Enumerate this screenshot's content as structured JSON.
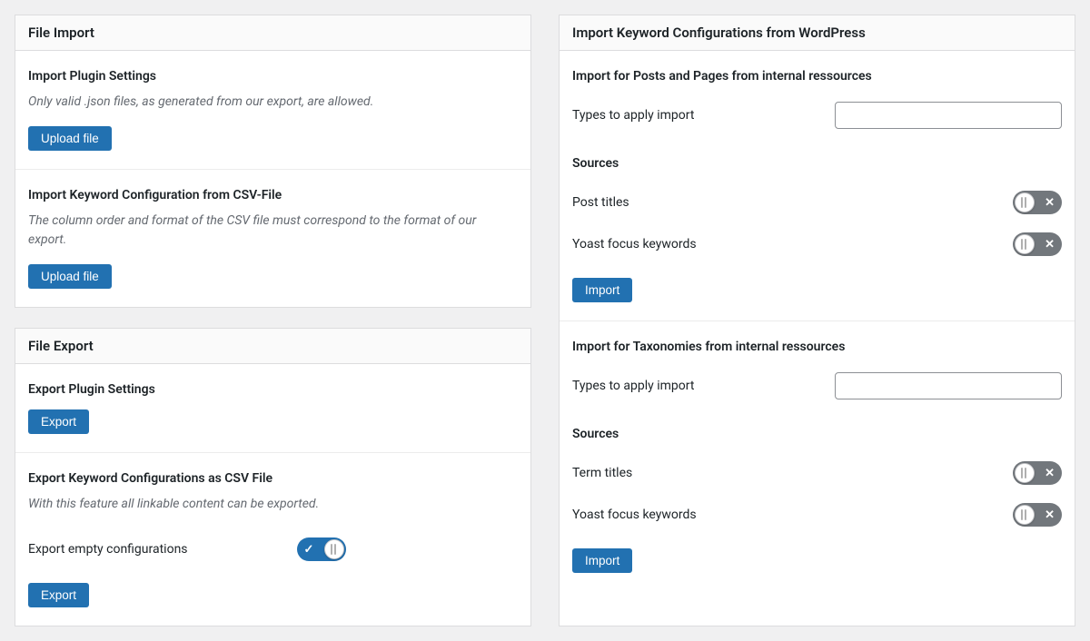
{
  "colors": {
    "page_bg": "#f0f0f1",
    "panel_bg": "#ffffff",
    "panel_border": "#dcdcde",
    "header_bg": "#fafafa",
    "button_bg": "#2271b1",
    "button_text": "#ffffff",
    "toggle_off_bg": "#72777c",
    "toggle_on_bg": "#2271b1",
    "desc_text": "#646970"
  },
  "left": {
    "file_import": {
      "title": "File Import",
      "plugin_settings": {
        "heading": "Import Plugin Settings",
        "desc": "Only valid .json files, as generated from our export, are allowed.",
        "button": "Upload file"
      },
      "csv_import": {
        "heading": "Import Keyword Configuration from CSV-File",
        "desc": "The column order and format of the CSV file must correspond to the format of our export.",
        "button": "Upload file"
      }
    },
    "file_export": {
      "title": "File Export",
      "plugin_settings": {
        "heading": "Export Plugin Settings",
        "button": "Export"
      },
      "csv_export": {
        "heading": "Export Keyword Configurations as CSV File",
        "desc": "With this feature all linkable content can be exported.",
        "empty_label": "Export empty configurations",
        "empty_toggle": true,
        "button": "Export"
      }
    }
  },
  "right": {
    "title": "Import Keyword Configurations from WordPress",
    "posts": {
      "heading": "Import for Posts and Pages from internal ressources",
      "types_label": "Types to apply import",
      "types_value": "",
      "sources_heading": "Sources",
      "source1": {
        "label": "Post titles",
        "enabled": false
      },
      "source2": {
        "label": "Yoast focus keywords",
        "enabled": false
      },
      "button": "Import"
    },
    "tax": {
      "heading": "Import for Taxonomies from internal ressources",
      "types_label": "Types to apply import",
      "types_value": "",
      "sources_heading": "Sources",
      "source1": {
        "label": "Term titles",
        "enabled": false
      },
      "source2": {
        "label": "Yoast focus keywords",
        "enabled": false
      },
      "button": "Import"
    }
  }
}
